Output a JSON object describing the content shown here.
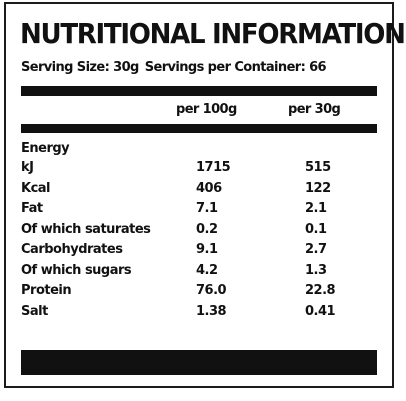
{
  "title": "NUTRITIONAL INFORMATION",
  "serving": {
    "size": "Serving Size: 30g",
    "servings": "Servings per Container: 66"
  },
  "columns": {
    "per_100g": "per 100g",
    "per_serving": "per 30g"
  },
  "energy_label": "Energy",
  "rows": [
    {
      "name": "kJ",
      "per_100g": "1715",
      "per_serving": "515"
    },
    {
      "name": "Kcal",
      "per_100g": "406",
      "per_serving": "122"
    },
    {
      "name": "Fat",
      "per_100g": "7.1",
      "per_serving": "2.1"
    },
    {
      "name": "Of which saturates",
      "per_100g": "0.2",
      "per_serving": "0.1"
    },
    {
      "name": "Carbohydrates",
      "per_100g": "9.1",
      "per_serving": "2.7"
    },
    {
      "name": "Of which sugars",
      "per_100g": "4.2",
      "per_serving": "1.3"
    },
    {
      "name": "Protein",
      "per_100g": "76.0",
      "per_serving": "22.8"
    },
    {
      "name": "Salt",
      "per_100g": "1.38",
      "per_serving": "0.41"
    }
  ],
  "colors": {
    "ink": "#111111",
    "background": "#ffffff"
  }
}
